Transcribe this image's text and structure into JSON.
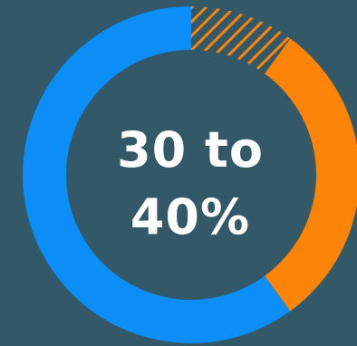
{
  "chart_data": {
    "type": "pie",
    "style": "donut",
    "center_text": [
      "30 to",
      "40%"
    ],
    "slices": [
      {
        "value": 60,
        "color": "#0b8ef8",
        "fill": "solid"
      },
      {
        "value": 30,
        "color": "#fd8406",
        "fill": "solid"
      },
      {
        "value": 10,
        "color": "#fd8406",
        "fill": "hatched"
      }
    ],
    "range_low": 30,
    "range_high": 40,
    "background": "#335867"
  }
}
